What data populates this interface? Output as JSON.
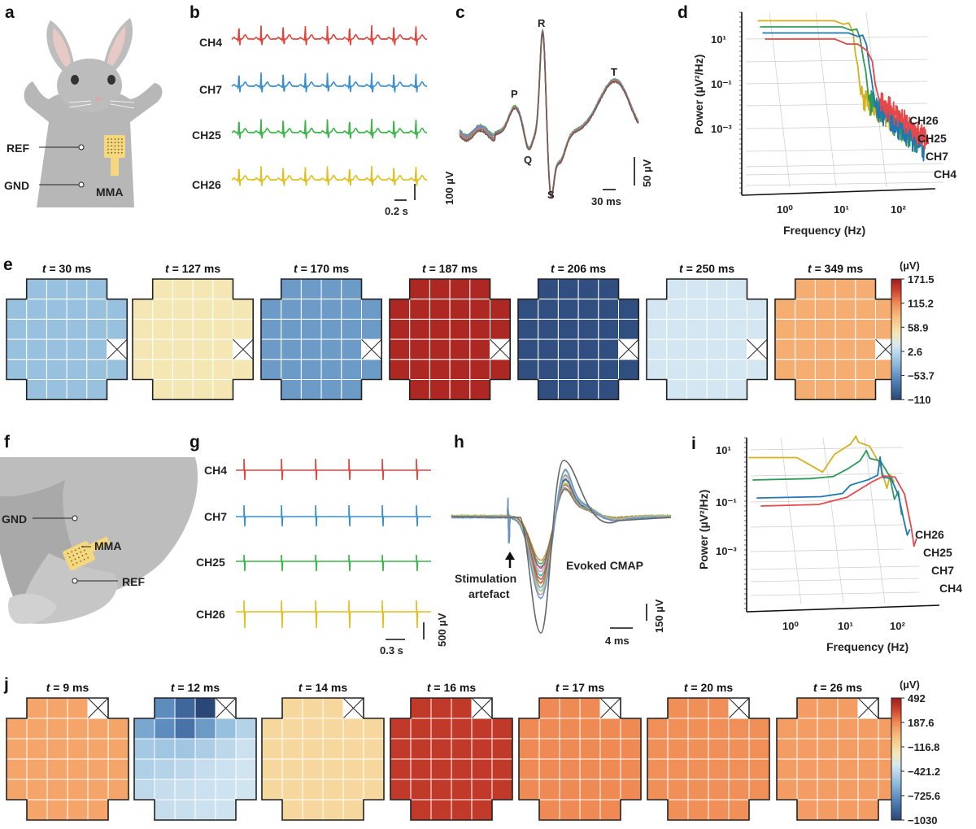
{
  "panels": {
    "a": {
      "label": "a",
      "ref": "REF",
      "gnd": "GND",
      "mma": "MMA"
    },
    "b": {
      "label": "b",
      "channels": [
        "CH4",
        "CH7",
        "CH25",
        "CH26"
      ],
      "time_scale": "0.2 s",
      "amp_scale": "100 µV"
    },
    "c": {
      "label": "c",
      "waves": [
        "P",
        "Q",
        "R",
        "S",
        "T"
      ],
      "time_scale": "30 ms",
      "amp_scale": "50 µV"
    },
    "d": {
      "label": "d"
    },
    "e": {
      "label": "e"
    },
    "f": {
      "label": "f",
      "gnd": "GND",
      "mma": "MMA",
      "ref": "REF"
    },
    "g": {
      "label": "g",
      "channels": [
        "CH4",
        "CH7",
        "CH25",
        "CH26"
      ],
      "time_scale": "0.3 s",
      "amp_scale": "500 µV"
    },
    "h": {
      "label": "h",
      "artefact_line1": "Stimulation",
      "artefact_line2": "artefact",
      "cmap": "Evoked CMAP",
      "time_scale": "4 ms",
      "amp_scale": "150 µV"
    },
    "i": {
      "label": "i"
    },
    "j": {
      "label": "j"
    }
  },
  "colors": {
    "CH4": "#e2453c",
    "CH7": "#3b8fd0",
    "CH25": "#3cb54a",
    "CH26": "#e0c020",
    "psd_CH4": "#e4484a",
    "psd_CH7": "#1f77b4",
    "psd_CH25": "#2e9a5a",
    "psd_CH26": "#d4b21e"
  },
  "chart_data": [
    {
      "id": "d",
      "type": "line",
      "scale": "log-log (3D waterfall)",
      "xlabel": "Frequency (Hz)",
      "ylabel": "Power (µV²/Hz)",
      "xticks": [
        "10⁰",
        "10¹",
        "10²"
      ],
      "yticks": [
        "10¹",
        "10⁻¹",
        "10⁻³"
      ],
      "series": [
        {
          "name": "CH26",
          "points": [
            [
              0.3,
              10
            ],
            [
              8,
              10
            ],
            [
              12,
              7
            ],
            [
              15,
              8
            ],
            [
              18,
              3
            ],
            [
              20,
              0.3
            ],
            [
              22,
              0.1
            ],
            [
              25,
              0.005
            ]
          ]
        },
        {
          "name": "CH25",
          "points": [
            [
              0.3,
              10
            ],
            [
              10,
              10
            ],
            [
              15,
              7
            ],
            [
              19,
              8
            ],
            [
              22,
              3
            ],
            [
              25,
              0.4
            ],
            [
              28,
              0.1
            ],
            [
              32,
              0.005
            ]
          ]
        },
        {
          "name": "CH7",
          "points": [
            [
              0.3,
              10
            ],
            [
              12,
              10
            ],
            [
              18,
              7
            ],
            [
              22,
              8
            ],
            [
              26,
              3
            ],
            [
              29,
              0.4
            ],
            [
              32,
              0.1
            ],
            [
              38,
              0.005
            ]
          ]
        },
        {
          "name": "CH4",
          "points": [
            [
              0.3,
              10
            ],
            [
              6,
              10
            ],
            [
              10,
              6
            ],
            [
              16,
              6
            ],
            [
              24,
              3
            ],
            [
              30,
              1
            ],
            [
              34,
              0.1
            ],
            [
              40,
              0.02
            ]
          ]
        }
      ],
      "legend": [
        "CH26",
        "CH25",
        "CH7",
        "CH4"
      ]
    },
    {
      "id": "i",
      "type": "line",
      "scale": "log-log (3D waterfall)",
      "xlabel": "Frequency (Hz)",
      "ylabel": "Power (µV²/Hz)",
      "xticks": [
        "10⁰",
        "10¹",
        "10²"
      ],
      "yticks": [
        "10¹",
        "10⁻¹",
        "10⁻³"
      ],
      "series": [
        {
          "name": "CH26",
          "points": [
            [
              0.25,
              0.9
            ],
            [
              2,
              0.9
            ],
            [
              4,
              0.4
            ],
            [
              6,
              0.25
            ],
            [
              10,
              1.2
            ],
            [
              20,
              3
            ],
            [
              25,
              6
            ],
            [
              28,
              3.5
            ],
            [
              45,
              2.5
            ],
            [
              70,
              0.5
            ],
            [
              95,
              0.06
            ],
            [
              110,
              0.2
            ],
            [
              130,
              0.1
            ]
          ]
        },
        {
          "name": "CH25",
          "points": [
            [
              0.25,
              0.22
            ],
            [
              3,
              0.25
            ],
            [
              8,
              0.3
            ],
            [
              15,
              0.6
            ],
            [
              25,
              1.2
            ],
            [
              33,
              3
            ],
            [
              38,
              1.5
            ],
            [
              60,
              1.2
            ],
            [
              90,
              0.3
            ],
            [
              110,
              0.04
            ],
            [
              130,
              0.08
            ],
            [
              150,
              0.01
            ]
          ]
        },
        {
          "name": "CH7",
          "points": [
            [
              0.25,
              0.08
            ],
            [
              4,
              0.09
            ],
            [
              10,
              0.12
            ],
            [
              14,
              0.25
            ],
            [
              30,
              0.4
            ],
            [
              45,
              0.6
            ],
            [
              50,
              3
            ],
            [
              55,
              0.5
            ],
            [
              80,
              0.45
            ],
            [
              110,
              0.1
            ],
            [
              140,
              0.01
            ],
            [
              160,
              0.003
            ],
            [
              180,
              0.005
            ]
          ]
        },
        {
          "name": "CH4",
          "points": [
            [
              0.25,
              0.07
            ],
            [
              3,
              0.08
            ],
            [
              10,
              0.15
            ],
            [
              30,
              0.6
            ],
            [
              50,
              1
            ],
            [
              80,
              0.9
            ],
            [
              120,
              0.2
            ],
            [
              160,
              0.01
            ],
            [
              180,
              0.002
            ],
            [
              200,
              0.004
            ]
          ]
        }
      ],
      "legend": [
        "CH26",
        "CH25",
        "CH7",
        "CH4"
      ]
    },
    {
      "id": "e",
      "type": "heatmap",
      "unit": "(µV)",
      "colorbar_ticks": [
        "171.5",
        "115.2",
        "58.9",
        "2.6",
        "−53.7",
        "−110"
      ],
      "range": [
        -110,
        171.5
      ],
      "missing_channel": [
        3,
        5
      ],
      "maps": [
        {
          "title": "t = 30 ms",
          "value": -20
        },
        {
          "title": "t = 127 ms",
          "value": 45
        },
        {
          "title": "t = 170 ms",
          "value": -48
        },
        {
          "title": "t = 187 ms",
          "value": 163
        },
        {
          "title": "t = 206 ms",
          "value": -104
        },
        {
          "title": "t = 250 ms",
          "value": 15
        },
        {
          "title": "t = 349 ms",
          "value": 93
        }
      ]
    },
    {
      "id": "j",
      "type": "heatmap",
      "unit": "(µV)",
      "colorbar_ticks": [
        "492",
        "187.6",
        "−116.8",
        "−421.2",
        "−725.6",
        "−1030"
      ],
      "range": [
        -1030,
        492
      ],
      "missing_channel": [
        0,
        4
      ],
      "maps": [
        {
          "title": "t = 9 ms",
          "value": 96
        },
        {
          "title": "t = 12 ms",
          "rows": [
            [
              -750,
              -900,
              -1030
            ],
            [
              -650,
              -750,
              -850,
              -700,
              -550,
              -450
            ],
            [
              -500,
              -520,
              -520,
              -480,
              -430,
              -380
            ],
            [
              -470,
              -450,
              -430,
              -400,
              -380,
              -360
            ],
            [
              -420,
              -400,
              -390,
              -380,
              -370,
              -360
            ],
            [
              -400,
              -390,
              -380,
              -370
            ]
          ]
        },
        {
          "title": "t = 14 ms",
          "value": -117
        },
        {
          "title": "t = 16 ms",
          "value": 385
        },
        {
          "title": "t = 17 ms",
          "value": 188
        },
        {
          "title": "t = 20 ms",
          "value": 172
        },
        {
          "title": "t = 26 ms",
          "value": 127
        }
      ]
    }
  ]
}
